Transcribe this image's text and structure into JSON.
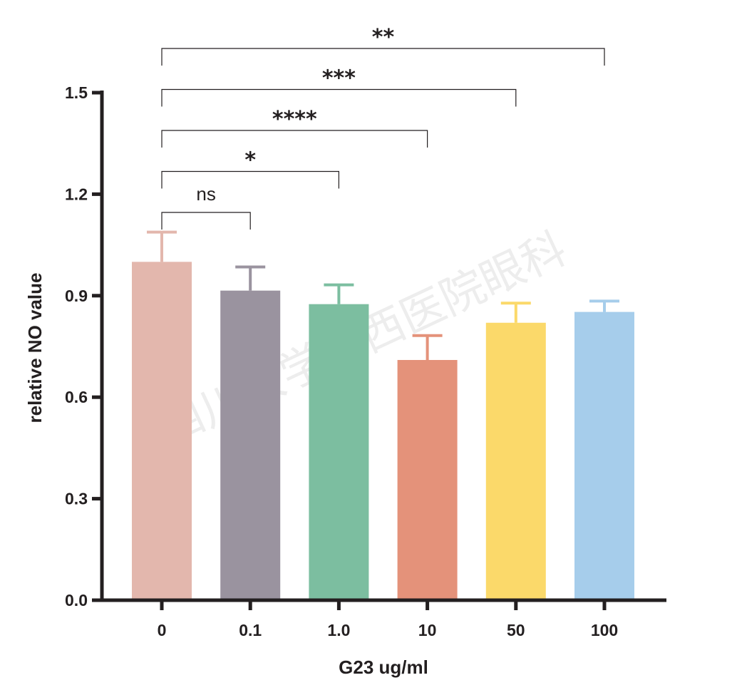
{
  "chart_data": {
    "type": "bar",
    "title": "",
    "xlabel": "G23 ug/ml",
    "ylabel": "relative NO value",
    "categories": [
      "0",
      "0.1",
      "1.0",
      "10",
      "50",
      "100"
    ],
    "values": [
      1.0,
      0.915,
      0.875,
      0.71,
      0.82,
      0.852
    ],
    "errors": [
      0.088,
      0.07,
      0.057,
      0.072,
      0.058,
      0.032
    ],
    "colors": [
      "#e3b7ad",
      "#9a939f",
      "#7cbea0",
      "#e4927a",
      "#fbd96a",
      "#a6cdeb"
    ],
    "ylim": [
      0,
      1.5
    ],
    "yticks": [
      "0.0",
      "0.3",
      "0.6",
      "0.9",
      "1.2",
      "1.5"
    ],
    "grid": false,
    "comparisons": [
      {
        "from": 0,
        "to": 1,
        "label": "ns"
      },
      {
        "from": 0,
        "to": 2,
        "label": "*"
      },
      {
        "from": 0,
        "to": 3,
        "label": "****"
      },
      {
        "from": 0,
        "to": 4,
        "label": "***"
      },
      {
        "from": 0,
        "to": 5,
        "label": "**"
      }
    ]
  },
  "watermark": "四川大学华西医院眼科"
}
